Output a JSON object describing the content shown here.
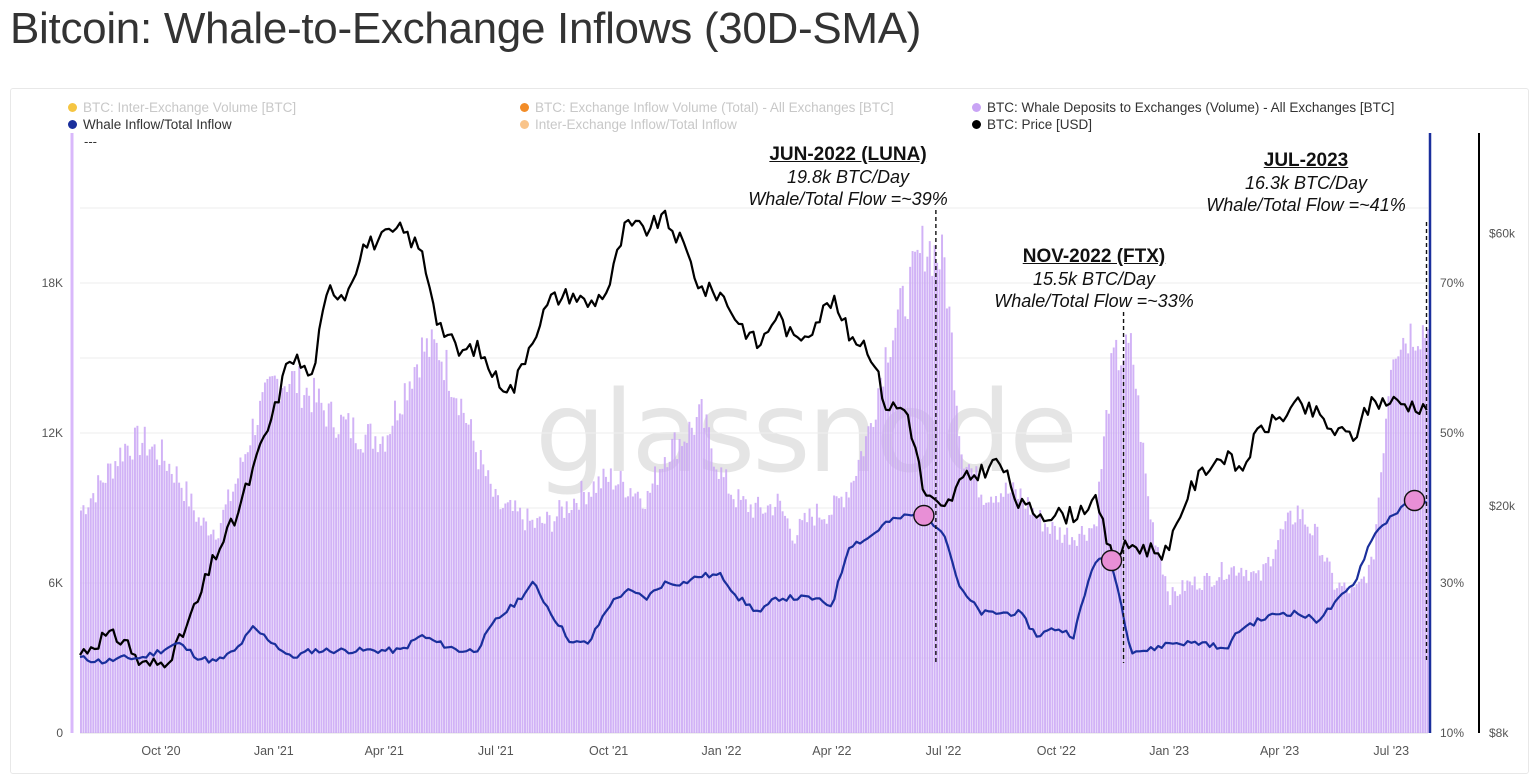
{
  "page": {
    "title": "Bitcoin: Whale-to-Exchange Inflows (30D-SMA)"
  },
  "legend": [
    {
      "label": "BTC: Inter-Exchange Volume [BTC]",
      "color": "#f5c542",
      "active": false
    },
    {
      "label": "BTC: Exchange Inflow Volume (Total) - All Exchanges [BTC]",
      "color": "#f28c28",
      "active": false
    },
    {
      "label": "BTC: Whale Deposits to Exchanges (Volume) - All Exchanges [BTC]",
      "color": "#c9a4f5",
      "active": true
    },
    {
      "label": "Whale Inflow/Total Inflow",
      "color": "#1a2f9c",
      "active": true
    },
    {
      "label": "Inter-Exchange Inflow/Total Inflow",
      "color": "#f9c48a",
      "active": false
    },
    {
      "label": "BTC: Price [USD]",
      "color": "#000000",
      "active": true
    }
  ],
  "legend_extra": "---",
  "watermark": "glassnode",
  "annotations": [
    {
      "heading": "JUN-2022 (LUNA)",
      "line1": "19.8k BTC/Day",
      "line2": "Whale/Total Flow =~39%"
    },
    {
      "heading": "NOV-2022 (FTX)",
      "line1": "15.5k BTC/Day",
      "line2": "Whale/Total Flow =~33%"
    },
    {
      "heading": "JUL-2023",
      "line1": "16.3k BTC/Day",
      "line2": "Whale/Total Flow =~41%"
    }
  ],
  "chart_data": {
    "type": "bar",
    "x_tick_labels": [
      "Oct '20",
      "Jan '21",
      "Apr '21",
      "Jul '21",
      "Oct '21",
      "Jan '22",
      "Apr '22",
      "Jul '22",
      "Oct '22",
      "Jan '23",
      "Apr '23",
      "Jul '23"
    ],
    "y_left_ticks": [
      "0",
      "6K",
      "12K",
      "18K"
    ],
    "y_left_range": [
      0,
      24000
    ],
    "y_ratio_ticks": [
      "10%",
      "30%",
      "50%",
      "70%"
    ],
    "y_ratio_range": [
      0.1,
      0.9
    ],
    "y_price_ticks": [
      "$8k",
      "$20k",
      "$60k"
    ],
    "y_price_scale": "log",
    "y_price_range": [
      8000,
      90000
    ],
    "x_range": [
      "2020-07-27",
      "2023-07-31"
    ],
    "series": [
      {
        "name": "BTC: Whale Deposits to Exchanges (Volume) - All Exchanges [BTC]",
        "type": "bar",
        "axis": "left",
        "color": "#c9a4f5",
        "x": [
          "2020-07-27",
          "2020-08-15",
          "2020-09-01",
          "2020-09-15",
          "2020-10-01",
          "2020-10-15",
          "2020-11-01",
          "2020-11-15",
          "2020-12-01",
          "2020-12-15",
          "2021-01-01",
          "2021-01-15",
          "2021-02-01",
          "2021-02-15",
          "2021-03-01",
          "2021-03-15",
          "2021-04-01",
          "2021-04-15",
          "2021-05-01",
          "2021-05-15",
          "2021-06-01",
          "2021-06-15",
          "2021-07-01",
          "2021-07-15",
          "2021-08-01",
          "2021-08-15",
          "2021-09-01",
          "2021-09-15",
          "2021-10-01",
          "2021-10-15",
          "2021-11-01",
          "2021-11-15",
          "2021-12-01",
          "2021-12-15",
          "2022-01-01",
          "2022-01-15",
          "2022-02-01",
          "2022-02-15",
          "2022-03-01",
          "2022-03-15",
          "2022-04-01",
          "2022-04-15",
          "2022-05-01",
          "2022-05-15",
          "2022-06-01",
          "2022-06-15",
          "2022-07-01",
          "2022-07-15",
          "2022-08-01",
          "2022-08-15",
          "2022-09-01",
          "2022-09-15",
          "2022-10-01",
          "2022-10-15",
          "2022-11-01",
          "2022-11-15",
          "2022-12-01",
          "2022-12-15",
          "2023-01-01",
          "2023-01-15",
          "2023-02-01",
          "2023-02-15",
          "2023-03-01",
          "2023-03-15",
          "2023-04-01",
          "2023-04-15",
          "2023-05-01",
          "2023-05-15",
          "2023-06-01",
          "2023-06-15",
          "2023-07-01",
          "2023-07-20"
        ],
        "values": [
          9000,
          10300,
          11600,
          11800,
          11200,
          10300,
          8500,
          8200,
          10200,
          12500,
          14200,
          14300,
          13600,
          12800,
          12400,
          12000,
          12000,
          13700,
          15500,
          15500,
          13500,
          11300,
          9200,
          8900,
          8400,
          8600,
          9400,
          9900,
          10300,
          10000,
          9500,
          11300,
          12000,
          12800,
          10300,
          9300,
          9000,
          9300,
          8000,
          8800,
          9000,
          10000,
          12300,
          15600,
          17800,
          19800,
          19000,
          11500,
          9700,
          9800,
          9600,
          8700,
          8100,
          8000,
          8400,
          15000,
          15500,
          9000,
          5500,
          6000,
          6200,
          6600,
          6700,
          6200,
          8000,
          9000,
          7900,
          6000,
          5700,
          6800,
          15700,
          16300
        ]
      },
      {
        "name": "Whale Inflow/Total Inflow",
        "type": "line",
        "axis": "ratio",
        "color": "#1a2f9c",
        "x": [
          "2020-07-27",
          "2020-08-15",
          "2020-09-01",
          "2020-09-15",
          "2020-10-01",
          "2020-10-15",
          "2020-11-01",
          "2020-11-15",
          "2020-12-01",
          "2020-12-15",
          "2021-01-01",
          "2021-01-15",
          "2021-02-01",
          "2021-02-15",
          "2021-03-01",
          "2021-03-15",
          "2021-04-01",
          "2021-04-15",
          "2021-05-01",
          "2021-05-15",
          "2021-06-01",
          "2021-06-15",
          "2021-07-01",
          "2021-07-15",
          "2021-08-01",
          "2021-08-15",
          "2021-09-01",
          "2021-09-15",
          "2021-10-01",
          "2021-10-15",
          "2021-11-01",
          "2021-11-15",
          "2021-12-01",
          "2021-12-15",
          "2022-01-01",
          "2022-01-15",
          "2022-02-01",
          "2022-02-15",
          "2022-03-01",
          "2022-03-15",
          "2022-04-01",
          "2022-04-15",
          "2022-05-01",
          "2022-05-15",
          "2022-06-01",
          "2022-06-15",
          "2022-07-01",
          "2022-07-15",
          "2022-08-01",
          "2022-08-15",
          "2022-09-01",
          "2022-09-15",
          "2022-10-01",
          "2022-10-15",
          "2022-11-01",
          "2022-11-15",
          "2022-12-01",
          "2022-12-15",
          "2023-01-01",
          "2023-01-15",
          "2023-02-01",
          "2023-02-15",
          "2023-03-01",
          "2023-03-15",
          "2023-04-01",
          "2023-04-15",
          "2023-05-01",
          "2023-05-15",
          "2023-06-01",
          "2023-06-15",
          "2023-07-01",
          "2023-07-20"
        ],
        "values": [
          0.2,
          0.195,
          0.2,
          0.2,
          0.21,
          0.22,
          0.2,
          0.195,
          0.21,
          0.24,
          0.22,
          0.2,
          0.21,
          0.21,
          0.21,
          0.21,
          0.21,
          0.21,
          0.23,
          0.22,
          0.21,
          0.21,
          0.25,
          0.27,
          0.3,
          0.26,
          0.22,
          0.22,
          0.27,
          0.29,
          0.28,
          0.3,
          0.3,
          0.31,
          0.31,
          0.28,
          0.26,
          0.28,
          0.28,
          0.28,
          0.27,
          0.35,
          0.36,
          0.38,
          0.39,
          0.39,
          0.37,
          0.29,
          0.26,
          0.26,
          0.26,
          0.23,
          0.24,
          0.23,
          0.33,
          0.33,
          0.21,
          0.21,
          0.22,
          0.22,
          0.22,
          0.21,
          0.24,
          0.25,
          0.26,
          0.26,
          0.25,
          0.27,
          0.3,
          0.36,
          0.39,
          0.41
        ]
      },
      {
        "name": "BTC: Price [USD]",
        "type": "line",
        "axis": "price",
        "color": "#000000",
        "x": [
          "2020-07-27",
          "2020-08-15",
          "2020-09-01",
          "2020-09-15",
          "2020-10-01",
          "2020-10-15",
          "2020-11-01",
          "2020-11-15",
          "2020-12-01",
          "2020-12-15",
          "2021-01-01",
          "2021-01-15",
          "2021-02-01",
          "2021-02-15",
          "2021-03-01",
          "2021-03-15",
          "2021-04-01",
          "2021-04-15",
          "2021-05-01",
          "2021-05-15",
          "2021-06-01",
          "2021-06-15",
          "2021-07-01",
          "2021-07-15",
          "2021-08-01",
          "2021-08-15",
          "2021-09-01",
          "2021-09-15",
          "2021-10-01",
          "2021-10-15",
          "2021-11-01",
          "2021-11-15",
          "2021-12-01",
          "2021-12-15",
          "2022-01-01",
          "2022-01-15",
          "2022-02-01",
          "2022-02-15",
          "2022-03-01",
          "2022-03-15",
          "2022-04-01",
          "2022-04-15",
          "2022-05-01",
          "2022-05-15",
          "2022-06-01",
          "2022-06-15",
          "2022-07-01",
          "2022-07-15",
          "2022-08-01",
          "2022-08-15",
          "2022-09-01",
          "2022-09-15",
          "2022-10-01",
          "2022-10-15",
          "2022-11-01",
          "2022-11-15",
          "2022-12-01",
          "2022-12-15",
          "2023-01-01",
          "2023-01-15",
          "2023-02-01",
          "2023-02-15",
          "2023-03-01",
          "2023-03-15",
          "2023-04-01",
          "2023-04-15",
          "2023-05-01",
          "2023-05-15",
          "2023-06-01",
          "2023-06-15",
          "2023-07-01",
          "2023-07-20"
        ],
        "values": [
          11000,
          11800,
          11700,
          10500,
          10600,
          11400,
          13700,
          16500,
          19000,
          23000,
          29000,
          37000,
          33500,
          48000,
          47000,
          57000,
          59000,
          61000,
          56000,
          42000,
          37000,
          38000,
          33500,
          31800,
          40000,
          46000,
          47000,
          45000,
          48000,
          62000,
          61000,
          64000,
          57000,
          48000,
          47000,
          42000,
          38000,
          43500,
          39000,
          41000,
          46000,
          40000,
          38000,
          30000,
          29500,
          21000,
          19500,
          22000,
          23000,
          24000,
          20000,
          19500,
          19300,
          19300,
          20500,
          16300,
          17100,
          16800,
          16600,
          20800,
          23500,
          24500,
          23000,
          27000,
          28500,
          30000,
          29000,
          27000,
          26500,
          30500,
          30500,
          30000
        ]
      }
    ],
    "event_markers": [
      {
        "date": "2022-06-15",
        "ratio": 0.39
      },
      {
        "date": "2022-11-15",
        "ratio": 0.33
      },
      {
        "date": "2023-07-20",
        "ratio": 0.41
      }
    ],
    "grid": true
  }
}
